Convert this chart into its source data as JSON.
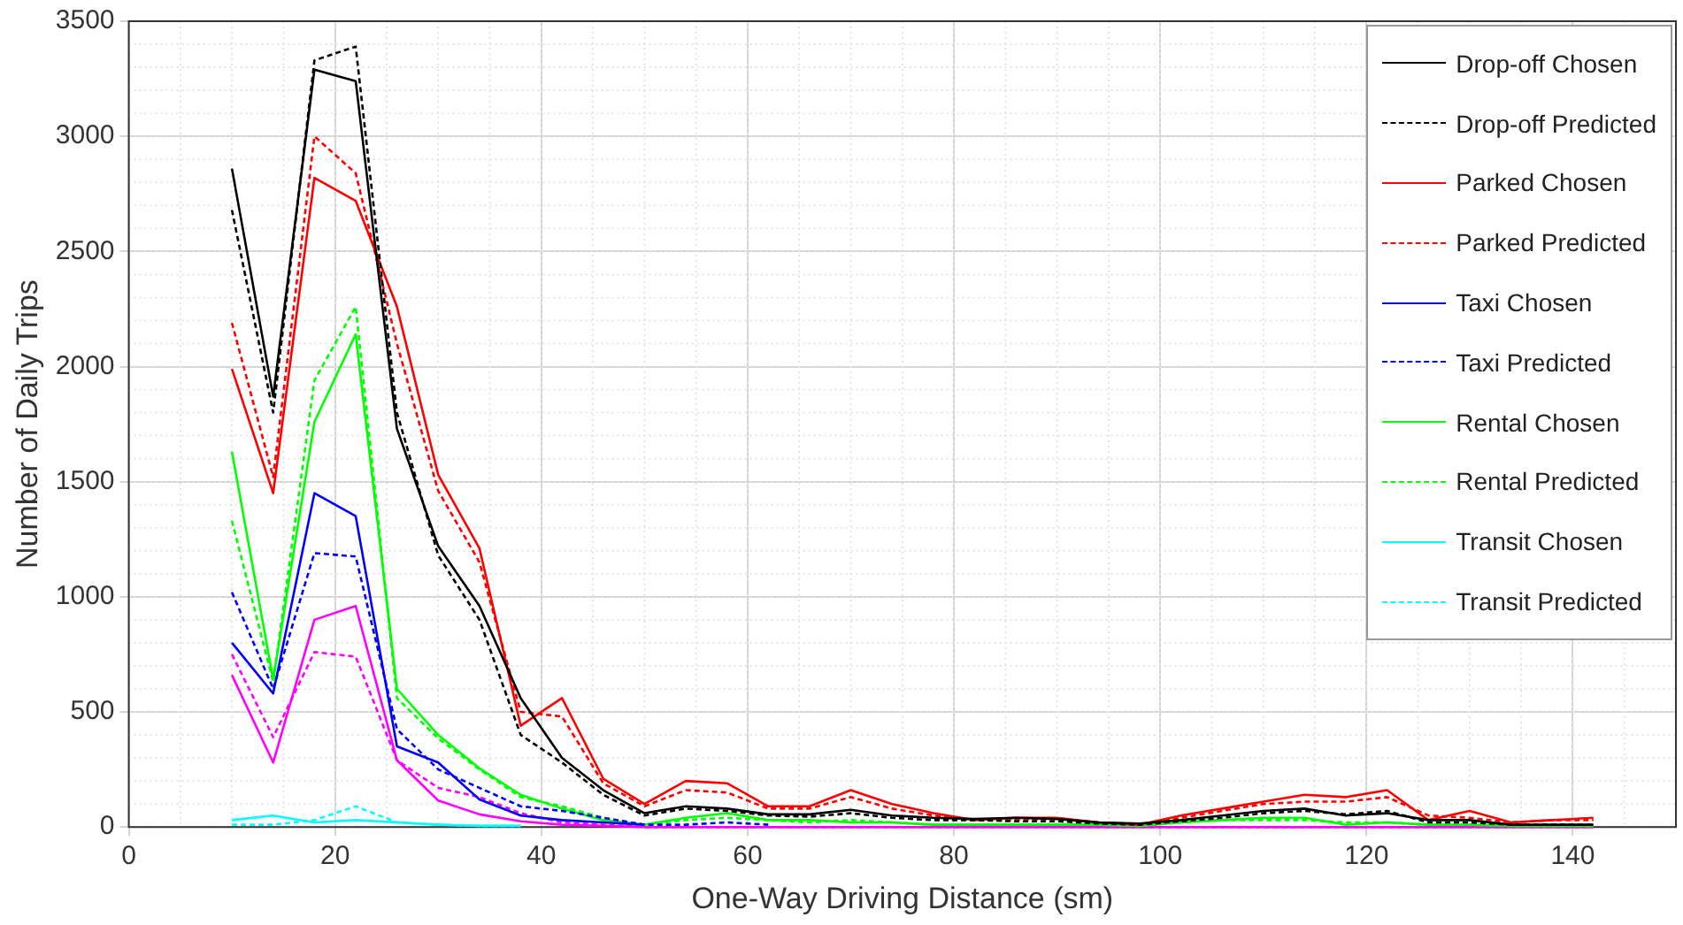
{
  "chart_data": {
    "type": "line",
    "xlabel": "One-Way Driving Distance (sm)",
    "ylabel": "Number of Daily Trips",
    "x": [
      10,
      14,
      18,
      22,
      26,
      30,
      34,
      38,
      42,
      46,
      50,
      54,
      58,
      62,
      66,
      70,
      74,
      78,
      82,
      86,
      90,
      94,
      98,
      102,
      106,
      110,
      114,
      118,
      122,
      126,
      130,
      134,
      138,
      142
    ],
    "xlim": [
      0,
      150
    ],
    "xticks": [
      0,
      20,
      40,
      60,
      80,
      100,
      120,
      140
    ],
    "ylim": [
      0,
      3500
    ],
    "yticks": [
      0,
      500,
      1000,
      1500,
      2000,
      2500,
      3000,
      3500
    ],
    "grid": true,
    "legend": "top right",
    "marker": "none",
    "series": [
      {
        "name": "Drop-off Chosen",
        "color": "#000000",
        "line_style": "solid",
        "values": [
          2860,
          1870,
          3290,
          3240,
          1730,
          1220,
          960,
          560,
          300,
          160,
          60,
          90,
          80,
          55,
          55,
          75,
          50,
          40,
          35,
          40,
          35,
          20,
          15,
          30,
          50,
          70,
          80,
          50,
          60,
          30,
          30,
          10,
          10,
          10
        ]
      },
      {
        "name": "Drop-off Predicted",
        "color": "#000000",
        "line_style": "dashed",
        "values": [
          2680,
          1800,
          3330,
          3390,
          1800,
          1180,
          900,
          400,
          280,
          140,
          50,
          80,
          70,
          50,
          45,
          60,
          40,
          30,
          30,
          25,
          25,
          15,
          10,
          25,
          40,
          60,
          70,
          55,
          70,
          20,
          20,
          10,
          10,
          10
        ]
      },
      {
        "name": "Parked Chosen",
        "color": "#ff0000",
        "line_style": "solid",
        "values": [
          1990,
          1450,
          2820,
          2720,
          2260,
          1530,
          1210,
          440,
          560,
          210,
          100,
          200,
          190,
          90,
          90,
          160,
          100,
          60,
          30,
          40,
          40,
          20,
          10,
          50,
          80,
          110,
          140,
          130,
          160,
          30,
          70,
          20,
          30,
          40
        ]
      },
      {
        "name": "Parked Predicted",
        "color": "#ff0000",
        "line_style": "dashed",
        "values": [
          2190,
          1520,
          3000,
          2840,
          2100,
          1460,
          1150,
          500,
          480,
          190,
          90,
          160,
          150,
          80,
          80,
          130,
          80,
          50,
          30,
          30,
          35,
          20,
          10,
          40,
          70,
          100,
          110,
          110,
          130,
          50,
          40,
          20,
          30,
          30
        ]
      },
      {
        "name": "Taxi Chosen",
        "color": "#0000ff",
        "line_style": "solid",
        "values": [
          800,
          580,
          1450,
          1350,
          350,
          280,
          120,
          50,
          30,
          20,
          10,
          null,
          null,
          null,
          null,
          null,
          null,
          null,
          null,
          null,
          null,
          null,
          null,
          null,
          null,
          null,
          null,
          null,
          null,
          null,
          null,
          null,
          null,
          null
        ]
      },
      {
        "name": "Taxi Predicted",
        "color": "#0000ff",
        "line_style": "dashed",
        "values": [
          1020,
          600,
          1190,
          1175,
          425,
          250,
          170,
          90,
          70,
          40,
          10,
          10,
          20,
          10,
          null,
          null,
          null,
          null,
          null,
          null,
          null,
          null,
          null,
          null,
          null,
          null,
          null,
          null,
          null,
          null,
          null,
          null,
          null,
          null
        ]
      },
      {
        "name": "Rental Chosen",
        "color": "#00ff00",
        "line_style": "solid",
        "values": [
          1630,
          640,
          1760,
          2140,
          600,
          400,
          255,
          140,
          80,
          30,
          10,
          40,
          60,
          30,
          30,
          20,
          20,
          10,
          10,
          10,
          10,
          10,
          5,
          20,
          30,
          40,
          40,
          10,
          20,
          10,
          10,
          5,
          5,
          5
        ]
      },
      {
        "name": "Rental Predicted",
        "color": "#00ff00",
        "line_style": "dashed",
        "values": [
          1330,
          630,
          1940,
          2260,
          560,
          385,
          250,
          130,
          90,
          40,
          10,
          30,
          40,
          30,
          20,
          30,
          20,
          10,
          10,
          10,
          10,
          10,
          5,
          20,
          30,
          30,
          30,
          20,
          20,
          10,
          10,
          5,
          5,
          5
        ]
      },
      {
        "name": "Transit Chosen",
        "color": "#00ffff",
        "line_style": "solid",
        "values": [
          30,
          50,
          20,
          30,
          20,
          10,
          5,
          5,
          null,
          null,
          null,
          null,
          null,
          null,
          null,
          null,
          null,
          null,
          null,
          null,
          null,
          null,
          null,
          null,
          null,
          null,
          null,
          null,
          null,
          null,
          null,
          null,
          null,
          null
        ]
      },
      {
        "name": "Transit Predicted",
        "color": "#00ffff",
        "line_style": "dashed",
        "values": [
          10,
          10,
          30,
          90,
          20,
          10,
          5,
          5,
          null,
          null,
          null,
          null,
          null,
          null,
          null,
          null,
          null,
          null,
          null,
          null,
          null,
          null,
          null,
          null,
          null,
          null,
          null,
          null,
          null,
          null,
          null,
          null,
          null,
          null
        ]
      },
      {
        "color": "#ff00ff",
        "line_style": "solid",
        "values": [
          660,
          280,
          900,
          960,
          290,
          115,
          55,
          25,
          10,
          5,
          0,
          0,
          0,
          0,
          0,
          0,
          0,
          0,
          0,
          0,
          0,
          0,
          0,
          0,
          0,
          0,
          0,
          0,
          0,
          0,
          0,
          0,
          0,
          0
        ]
      },
      {
        "color": "#ff00ff",
        "line_style": "dashed",
        "values": [
          750,
          390,
          760,
          740,
          290,
          170,
          130,
          60,
          20,
          10,
          0,
          0,
          0,
          0,
          0,
          0,
          0,
          0,
          0,
          0,
          0,
          0,
          0,
          0,
          0,
          0,
          0,
          0,
          0,
          0,
          0,
          0,
          0,
          0
        ]
      }
    ]
  }
}
